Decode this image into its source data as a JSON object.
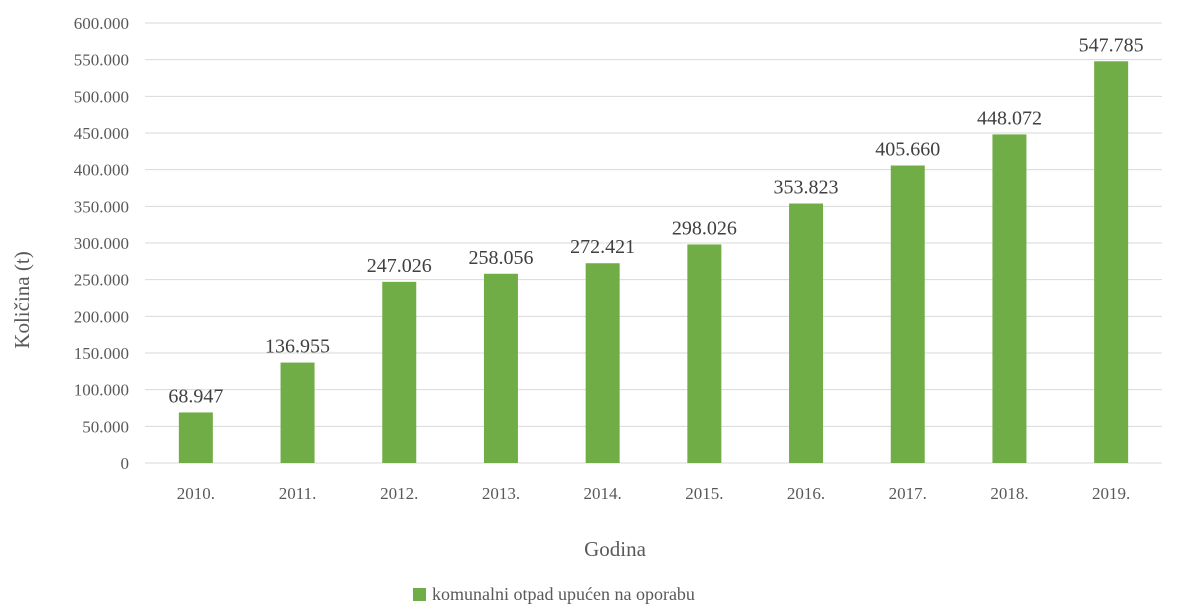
{
  "chart_data": {
    "type": "bar",
    "title": "",
    "xlabel": "Godina",
    "ylabel": "Količina (t)",
    "categories": [
      "2010.",
      "2011.",
      "2012.",
      "2013.",
      "2014.",
      "2015.",
      "2016.",
      "2017.",
      "2018.",
      "2019."
    ],
    "series": [
      {
        "name": "komunalni otpad upućen na oporabu",
        "values": [
          68947,
          136955,
          247026,
          258056,
          272421,
          298026,
          353823,
          405660,
          448072,
          547785
        ],
        "data_labels": [
          "68.947",
          "136.955",
          "247.026",
          "258.056",
          "272.421",
          "298.026",
          "353.823",
          "405.660",
          "448.072",
          "547.785"
        ],
        "color": "#70ad47"
      }
    ],
    "ylim": [
      0,
      600000
    ],
    "y_ticks": [
      0,
      50000,
      100000,
      150000,
      200000,
      250000,
      300000,
      350000,
      400000,
      450000,
      500000,
      550000,
      600000
    ],
    "y_tick_labels": [
      "0",
      "50.000",
      "100.000",
      "150.000",
      "200.000",
      "250.000",
      "300.000",
      "350.000",
      "400.000",
      "450.000",
      "500.000",
      "550.000",
      "600.000"
    ],
    "grid": true,
    "gridline_color": "#d9d9d9",
    "legend_position": "bottom"
  }
}
